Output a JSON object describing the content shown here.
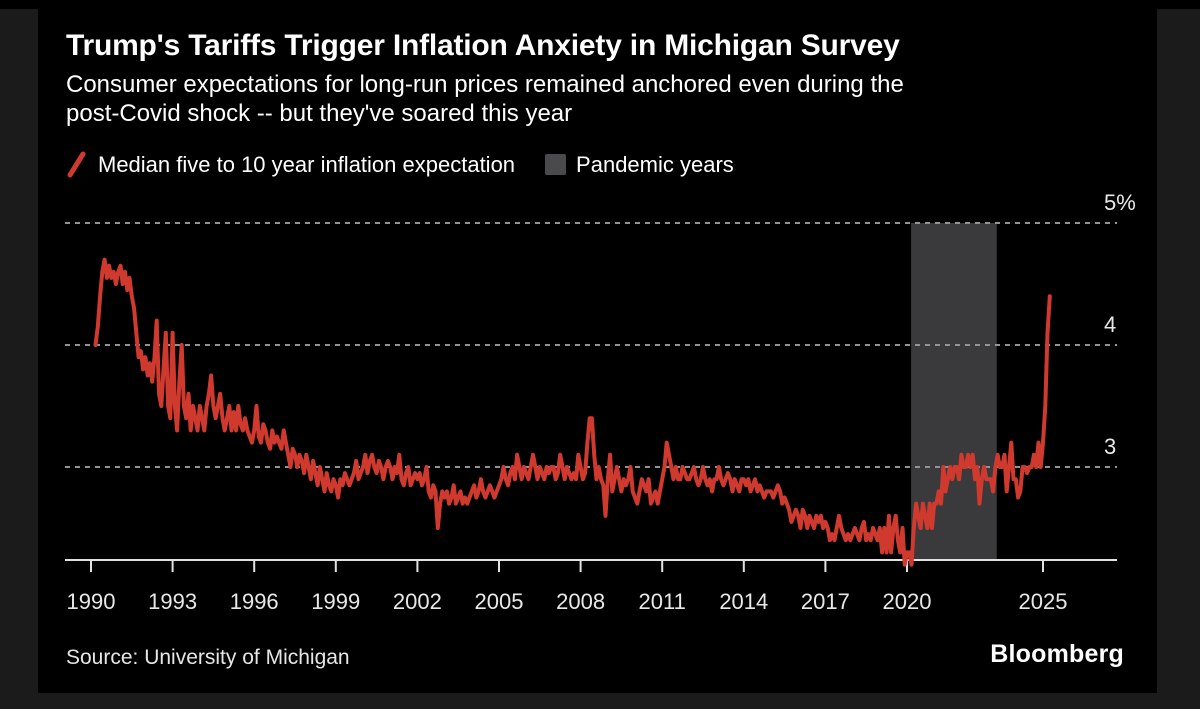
{
  "header": {
    "title": "Trump's Tariffs Trigger Inflation Anxiety in Michigan Survey",
    "subtitle_line1": "Consumer expectations for long-run prices remained anchored even during the",
    "subtitle_line2": "post-Covid shock -- but they've soared this year"
  },
  "legend": [
    {
      "marker": "red-line-slash",
      "label": "Median five to 10 year inflation expectation",
      "color": "#d03a2e"
    },
    {
      "marker": "gray-square",
      "label": "Pandemic years",
      "color": "#4a4a4c"
    }
  ],
  "footer": {
    "source": "Source: University of Michigan",
    "brand": "Bloomberg"
  },
  "colors": {
    "background": "#000000",
    "outer_background": "#1b1b1b",
    "line_red": "#d03a2e",
    "pandemic_band": "#3a3a3d",
    "gridline": "#939393",
    "axis": "#e2e2e2",
    "text": "#ffffff",
    "tick_label": "#e8e8e8"
  },
  "chart_data": {
    "type": "line",
    "title": "Trump's Tariffs Trigger Inflation Anxiety in Michigan Survey",
    "ylabel": "",
    "xlabel": "",
    "unit": "%",
    "grid": "horizontal dashed",
    "legend_position": "top",
    "x_ticks": [
      1990,
      1993,
      1996,
      1999,
      2002,
      2005,
      2008,
      2011,
      2014,
      2017,
      2020,
      2025
    ],
    "y_ticks": [
      {
        "value": 5,
        "label": "5%"
      },
      {
        "value": 4,
        "label": "4"
      },
      {
        "value": 3,
        "label": "3"
      }
    ],
    "x_range": [
      1989.0,
      2027.7
    ],
    "y_range": [
      2.24,
      5.3
    ],
    "pandemic_band": {
      "label": "Pandemic years",
      "start": 2020.15,
      "end": 2023.3,
      "color": "#3a3a3d"
    },
    "series": [
      {
        "name": "Median five to 10 year inflation expectation",
        "color": "#d03a2e",
        "frequency": "monthly",
        "start_year": 1990,
        "start_month": 3,
        "values": [
          4.0,
          4.15,
          4.4,
          4.6,
          4.7,
          4.55,
          4.65,
          4.55,
          4.6,
          4.5,
          4.6,
          4.65,
          4.5,
          4.6,
          4.45,
          4.55,
          4.4,
          4.3,
          4.1,
          3.9,
          3.95,
          3.8,
          3.9,
          3.75,
          3.85,
          3.7,
          3.9,
          4.2,
          3.6,
          3.5,
          3.8,
          4.1,
          3.5,
          3.4,
          4.1,
          3.5,
          3.3,
          3.7,
          4.0,
          3.5,
          3.4,
          3.6,
          3.3,
          3.5,
          3.4,
          3.3,
          3.5,
          3.4,
          3.3,
          3.5,
          3.6,
          3.75,
          3.5,
          3.4,
          3.5,
          3.6,
          3.4,
          3.3,
          3.4,
          3.5,
          3.3,
          3.45,
          3.3,
          3.5,
          3.35,
          3.3,
          3.4,
          3.3,
          3.25,
          3.2,
          3.3,
          3.5,
          3.25,
          3.2,
          3.35,
          3.3,
          3.2,
          3.15,
          3.3,
          3.2,
          3.25,
          3.2,
          3.15,
          3.3,
          3.2,
          3.1,
          3.0,
          3.15,
          3.1,
          3.0,
          3.1,
          3.05,
          2.95,
          3.1,
          3.0,
          2.9,
          3.05,
          2.95,
          2.85,
          3.0,
          2.9,
          2.8,
          2.95,
          2.85,
          2.8,
          2.9,
          2.85,
          2.75,
          2.9,
          2.85,
          2.95,
          2.9,
          2.85,
          2.9,
          2.95,
          3.05,
          2.9,
          2.95,
          3.0,
          3.1,
          2.95,
          3.05,
          3.1,
          3.0,
          2.95,
          3.05,
          3.0,
          2.9,
          3.0,
          3.05,
          3.0,
          2.9,
          3.0,
          2.95,
          3.1,
          2.9,
          2.85,
          2.95,
          3.0,
          2.85,
          2.9,
          2.95,
          2.9,
          2.95,
          2.85,
          2.9,
          3.0,
          2.8,
          2.75,
          2.85,
          2.8,
          2.5,
          2.7,
          2.8,
          2.75,
          2.8,
          2.7,
          2.75,
          2.85,
          2.7,
          2.75,
          2.8,
          2.7,
          2.75,
          2.7,
          2.75,
          2.8,
          2.85,
          2.75,
          2.8,
          2.9,
          2.8,
          2.75,
          2.8,
          2.85,
          2.8,
          2.75,
          2.8,
          2.85,
          2.9,
          3.0,
          2.9,
          2.85,
          2.95,
          3.0,
          2.9,
          3.1,
          3.0,
          2.9,
          3.0,
          2.95,
          2.9,
          3.0,
          3.1,
          3.0,
          2.9,
          3.0,
          2.95,
          2.9,
          3.0,
          2.95,
          3.0,
          3.0,
          2.9,
          2.95,
          3.1,
          3.0,
          2.9,
          3.0,
          2.95,
          2.9,
          2.95,
          2.9,
          3.1,
          3.0,
          2.9,
          2.95,
          3.2,
          3.4,
          3.4,
          3.1,
          2.9,
          3.0,
          2.9,
          2.85,
          2.6,
          2.9,
          3.1,
          2.8,
          2.9,
          3.0,
          2.9,
          2.8,
          2.9,
          2.85,
          2.9,
          3.0,
          2.8,
          2.75,
          2.7,
          2.8,
          2.9,
          2.85,
          2.8,
          2.9,
          2.7,
          2.75,
          2.8,
          2.7,
          2.8,
          2.9,
          3.0,
          3.2,
          3.1,
          3.0,
          2.9,
          3.0,
          2.9,
          2.9,
          3.0,
          2.95,
          2.9,
          2.9,
          2.95,
          3.0,
          2.9,
          2.85,
          2.9,
          3.0,
          2.9,
          2.85,
          2.9,
          2.8,
          2.9,
          2.9,
          3.0,
          2.9,
          2.85,
          2.9,
          2.95,
          2.9,
          2.8,
          2.9,
          2.85,
          2.8,
          2.9,
          2.9,
          2.85,
          2.9,
          2.8,
          2.85,
          2.9,
          2.8,
          2.85,
          2.8,
          2.75,
          2.8,
          2.8,
          2.8,
          2.75,
          2.8,
          2.85,
          2.8,
          2.7,
          2.75,
          2.7,
          2.65,
          2.55,
          2.6,
          2.65,
          2.6,
          2.5,
          2.65,
          2.6,
          2.5,
          2.6,
          2.55,
          2.5,
          2.6,
          2.55,
          2.6,
          2.5,
          2.55,
          2.5,
          2.4,
          2.45,
          2.4,
          2.5,
          2.6,
          2.5,
          2.45,
          2.4,
          2.45,
          2.4,
          2.45,
          2.5,
          2.45,
          2.4,
          2.5,
          2.55,
          2.4,
          2.45,
          2.4,
          2.5,
          2.45,
          2.4,
          2.5,
          2.3,
          2.5,
          2.3,
          2.6,
          2.3,
          2.5,
          2.6,
          2.4,
          2.3,
          2.5,
          2.2,
          2.3,
          2.3,
          2.2,
          2.5,
          2.7,
          2.6,
          2.5,
          2.7,
          2.6,
          2.5,
          2.7,
          2.5,
          2.7,
          2.7,
          2.8,
          2.7,
          3.0,
          2.8,
          2.9,
          3.0,
          2.9,
          3.0,
          3.0,
          2.9,
          3.1,
          3.0,
          3.0,
          3.1,
          3.0,
          3.1,
          2.9,
          3.0,
          2.7,
          2.9,
          3.0,
          2.9,
          2.9,
          2.9,
          2.8,
          3.0,
          3.1,
          3.0,
          3.0,
          3.1,
          2.8,
          3.0,
          3.2,
          2.9,
          2.9,
          2.75,
          2.8,
          3.0,
          3.0,
          2.95,
          3.0,
          3.0,
          3.1,
          3.0,
          3.2,
          3.0,
          3.2,
          3.5,
          4.1,
          4.4
        ]
      }
    ]
  }
}
